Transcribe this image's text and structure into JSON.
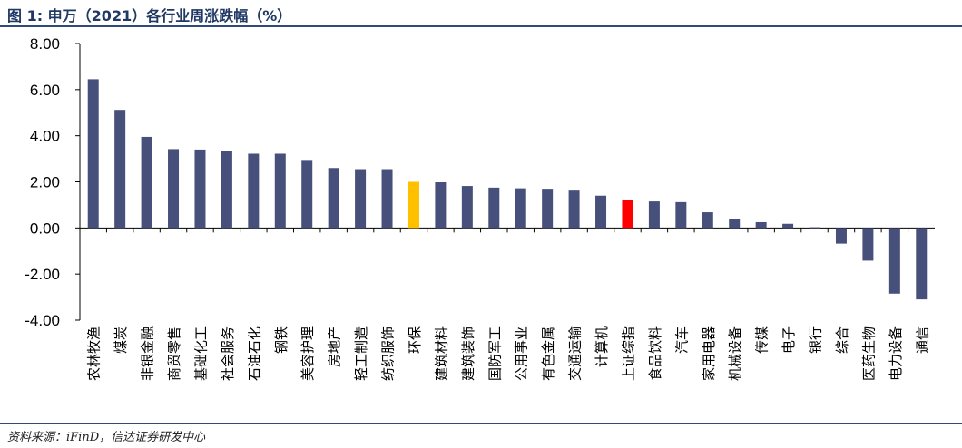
{
  "title": "图 1:  申万（2021）各行业周涨跌幅（%）",
  "source": "资料来源：iFinD，信达证券研发中心",
  "chart_data": {
    "type": "bar",
    "title": "图 1:  申万（2021）各行业周涨跌幅（%）",
    "xlabel": "",
    "ylabel": "",
    "ylim": [
      -4,
      8
    ],
    "yticks": [
      8,
      6,
      4,
      2,
      0,
      -2,
      -4
    ],
    "ytick_labels": [
      "8.00",
      "6.00",
      "4.00",
      "2.00",
      "0.00",
      "-2.00",
      "-4.00"
    ],
    "grid": false,
    "legend": "none",
    "categories": [
      "农林牧渔",
      "煤炭",
      "非银金融",
      "商贸零售",
      "基础化工",
      "社会服务",
      "石油石化",
      "钢铁",
      "美容护理",
      "房地产",
      "轻工制造",
      "纺织服饰",
      "环保",
      "建筑材料",
      "建筑装饰",
      "国防军工",
      "公用事业",
      "有色金属",
      "交通运输",
      "计算机",
      "上证综指",
      "食品饮料",
      "汽车",
      "家用电器",
      "机械设备",
      "传媒",
      "电子",
      "银行",
      "综合",
      "医药生物",
      "电力设备",
      "通信"
    ],
    "values": [
      6.45,
      5.12,
      3.95,
      3.42,
      3.4,
      3.32,
      3.22,
      3.22,
      2.95,
      2.6,
      2.55,
      2.55,
      2.0,
      1.98,
      1.82,
      1.75,
      1.72,
      1.7,
      1.62,
      1.4,
      1.22,
      1.15,
      1.12,
      0.68,
      0.38,
      0.25,
      0.18,
      0.03,
      -0.68,
      -1.42,
      -2.85,
      -3.1
    ],
    "colors": {
      "default": "#46507a",
      "highlight_环保": "#ffc000",
      "highlight_上证综指": "#ff0000"
    }
  }
}
